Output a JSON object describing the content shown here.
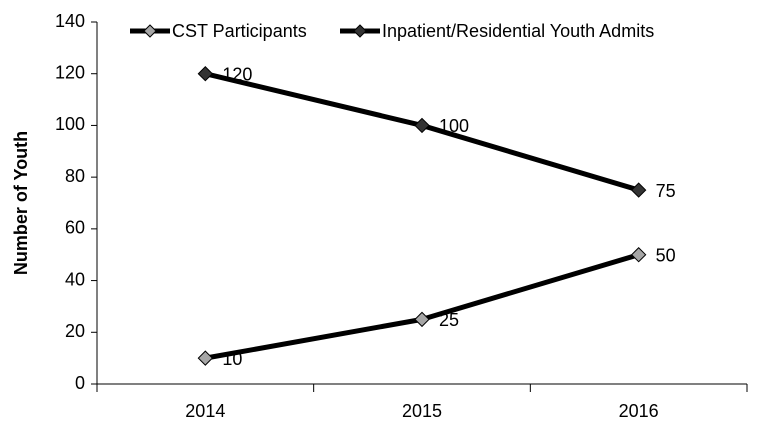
{
  "chart_data": {
    "type": "line",
    "categories": [
      "2014",
      "2015",
      "2016"
    ],
    "series": [
      {
        "name": "CST Participants",
        "color": "#a6a6a6",
        "line_color": "#000000",
        "values": [
          10,
          25,
          50
        ]
      },
      {
        "name": "Inpatient/Residential Youth Admits",
        "color": "#333333",
        "line_color": "#000000",
        "values": [
          120,
          100,
          75
        ]
      }
    ],
    "ylabel": "Number of Youth",
    "ylim": [
      0,
      140
    ],
    "yticks": [
      0,
      20,
      40,
      60,
      80,
      100,
      120,
      140
    ],
    "grid": false,
    "legend": "top"
  }
}
